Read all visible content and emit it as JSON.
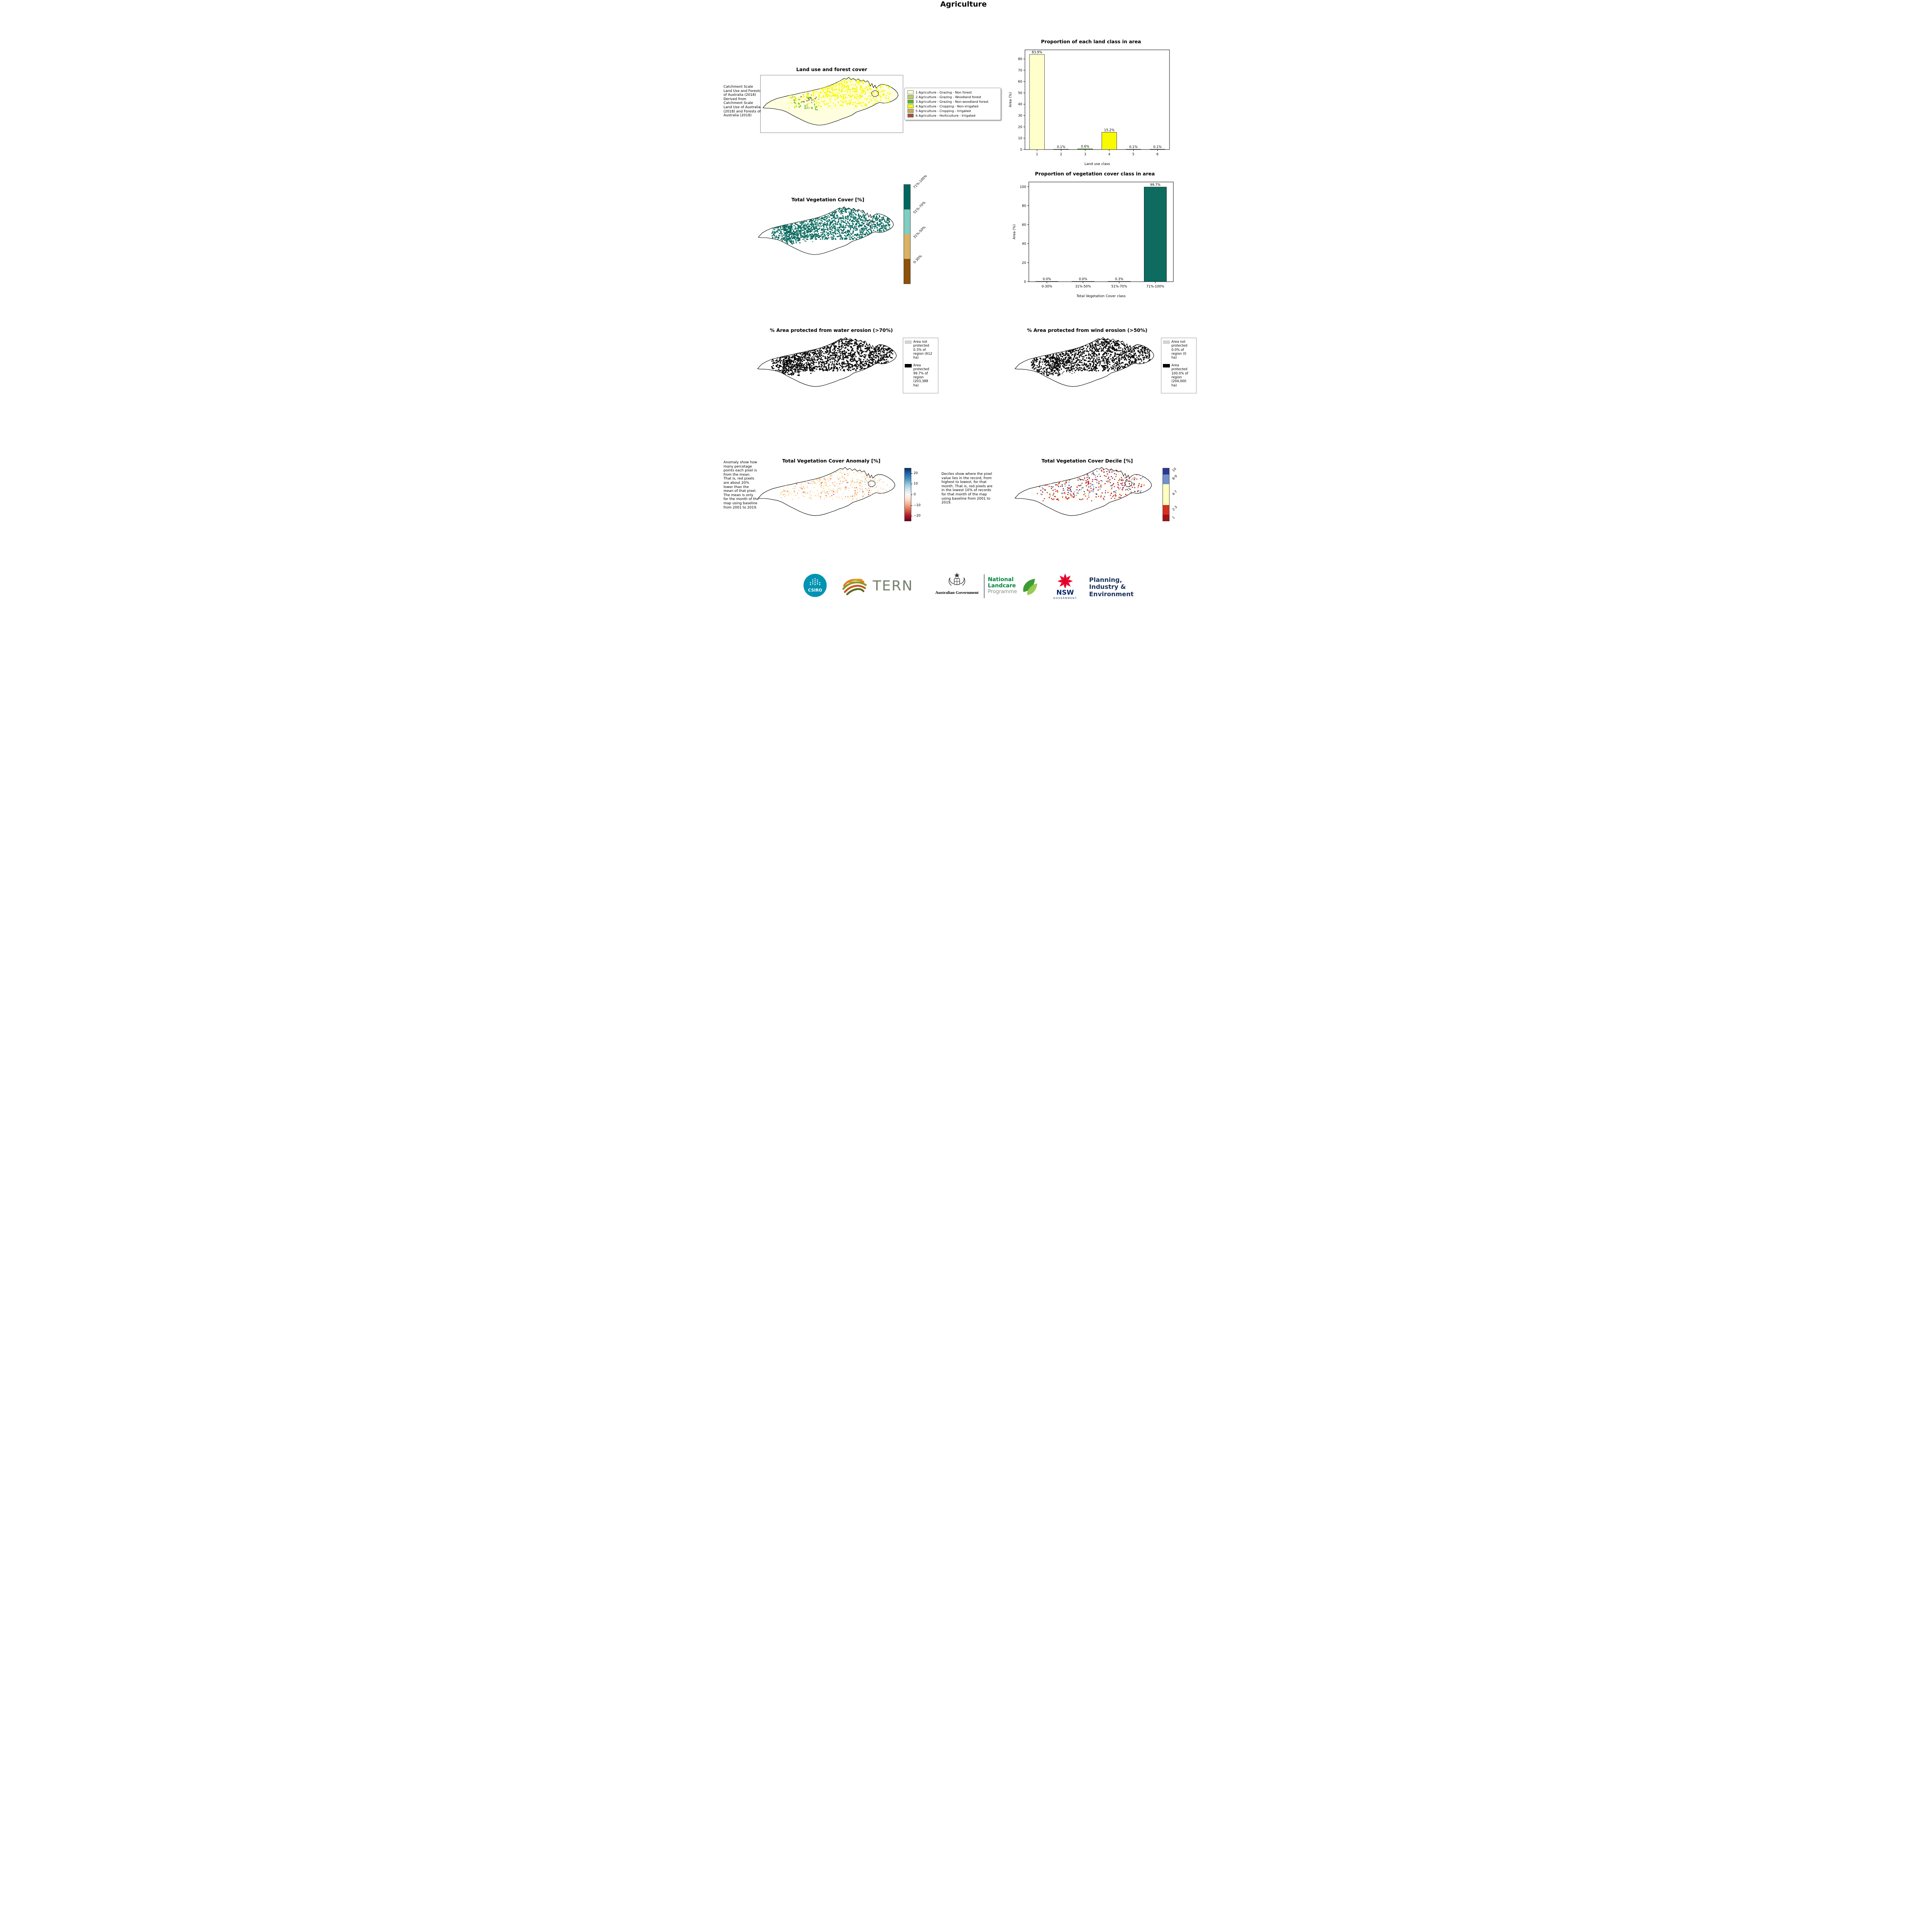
{
  "page": {
    "title": "Agriculture"
  },
  "land_use": {
    "title": "Land use and forest cover",
    "side_note": "Catchment Scale Land Use and Forests of Australia (2018) Derived from Catchment Scale Land Use of Australia (2018) and Forests of Australia (2018)",
    "legend": [
      {
        "label": "1 Agriculture - Grazing - Non forest",
        "color": "#ffffcc"
      },
      {
        "label": "2 Agriculture - Grazing - Woodland forest",
        "color": "#bdcc60"
      },
      {
        "label": "3 Agriculture - Grazing - Non-woodland forest",
        "color": "#55b82e"
      },
      {
        "label": "4 Agriculture - Cropping - Non-irrigated",
        "color": "#f9f900"
      },
      {
        "label": "5 Agriculture - Cropping - Irrigated",
        "color": "#c7a857"
      },
      {
        "label": "6 Agriculture - Horticulture - Irrigated",
        "color": "#a6522c"
      }
    ]
  },
  "chart_data": [
    {
      "type": "bar",
      "title": "Proportion of each land class in area",
      "categories": [
        "1",
        "2",
        "3",
        "4",
        "5",
        "6"
      ],
      "values": [
        83.9,
        0.1,
        0.6,
        15.2,
        0.1,
        0.1
      ],
      "bar_labels": [
        "83.9%",
        "0.1%",
        "0.6%",
        "15.2%",
        "0.1%",
        "0.1%"
      ],
      "colors": [
        "#ffffcc",
        "#bdcc60",
        "#55b82e",
        "#f9f900",
        "#c7a857",
        "#a6522c"
      ],
      "xlabel": "Land use class",
      "ylabel": "Area (%)",
      "ylim": [
        0,
        88
      ],
      "yticks": [
        0,
        10,
        20,
        30,
        40,
        50,
        60,
        70,
        80
      ],
      "grid": false,
      "legend_position": "none"
    },
    {
      "type": "bar",
      "title": "Proportion of vegetation cover class in area",
      "categories": [
        "0-30%",
        "31%-50%",
        "51%-70%",
        "71%-100%"
      ],
      "values": [
        0.0,
        0.0,
        0.3,
        99.7
      ],
      "bar_labels": [
        "0.0%",
        "0.0%",
        "0.3%",
        "99.7%"
      ],
      "colors": [
        "#0d6b60",
        "#0d6b60",
        "#0d6b60",
        "#0d6b60"
      ],
      "xlabel": "Total Vegetation Cover class",
      "ylabel": "Area (%)",
      "ylim": [
        0,
        105
      ],
      "yticks": [
        0,
        20,
        40,
        60,
        80,
        100
      ],
      "grid": false,
      "legend_position": "none"
    }
  ],
  "veg_cover": {
    "title": "Total Vegetation Cover [%]",
    "colorbar": [
      {
        "label": "71%-100%",
        "color": "#01665e"
      },
      {
        "label": "51%-70%",
        "color": "#80cdc1"
      },
      {
        "label": "31%-50%",
        "color": "#d8b365"
      },
      {
        "label": "0-30%",
        "color": "#8c510a"
      }
    ]
  },
  "water_erosion": {
    "title": "% Area protected from water erosion (>70%)",
    "legend": [
      {
        "label": "Area not protected 0.3% of region (612 ha)",
        "color": "#d3d3d3"
      },
      {
        "label": "Area protected 99.7% of region (203,388 ha)",
        "color": "#000000"
      }
    ]
  },
  "wind_erosion": {
    "title": "% Area protected from wind erosion (>50%)",
    "legend": [
      {
        "label": "Area not protected 0.0% of region (0 ha)",
        "color": "#d3d3d3"
      },
      {
        "label": "Area protected 100.0% of region (204,000 ha)",
        "color": "#000000"
      }
    ]
  },
  "anomaly": {
    "title": "Total Vegetation Cover Anomaly [%]",
    "note": "Anomaly show how many percetage points each pixel is from the mean. That is, red pixels are about 20% lower than the mean of that pixel. The mean is only for the month of the map using baseline from 2001 to 2019.",
    "colorbar_ticks": [
      "20",
      "10",
      "0",
      "−10",
      "−20"
    ]
  },
  "decile": {
    "title": "Total Vegetation Cover Decile [%]",
    "note": "Deciles show where the pixel value lies in the record, from highest to lowest, for that month. That is, red pixels are in the lowest 10% of records for that month of the map using baseline from 2001 to 2019.",
    "colorbar": [
      {
        "label": "10",
        "color": "#2c3a94"
      },
      {
        "label": "8-9",
        "color": "#7191ce"
      },
      {
        "label": "4-7",
        "color": "#ffffbf"
      },
      {
        "label": "2-3",
        "color": "#d7301f"
      },
      {
        "label": "1",
        "color": "#a50f15"
      }
    ]
  },
  "footer": {
    "csiro": "CSIRO",
    "tern": "TERN",
    "aus_gov": "Australian Government",
    "landcare_1": "National",
    "landcare_2": "Landcare",
    "landcare_3": "Programme",
    "nsw": "NSW",
    "nsw_sub": "GOVERNMENT",
    "dpie_1": "Planning,",
    "dpie_2": "Industry &",
    "dpie_3": "Environment"
  }
}
